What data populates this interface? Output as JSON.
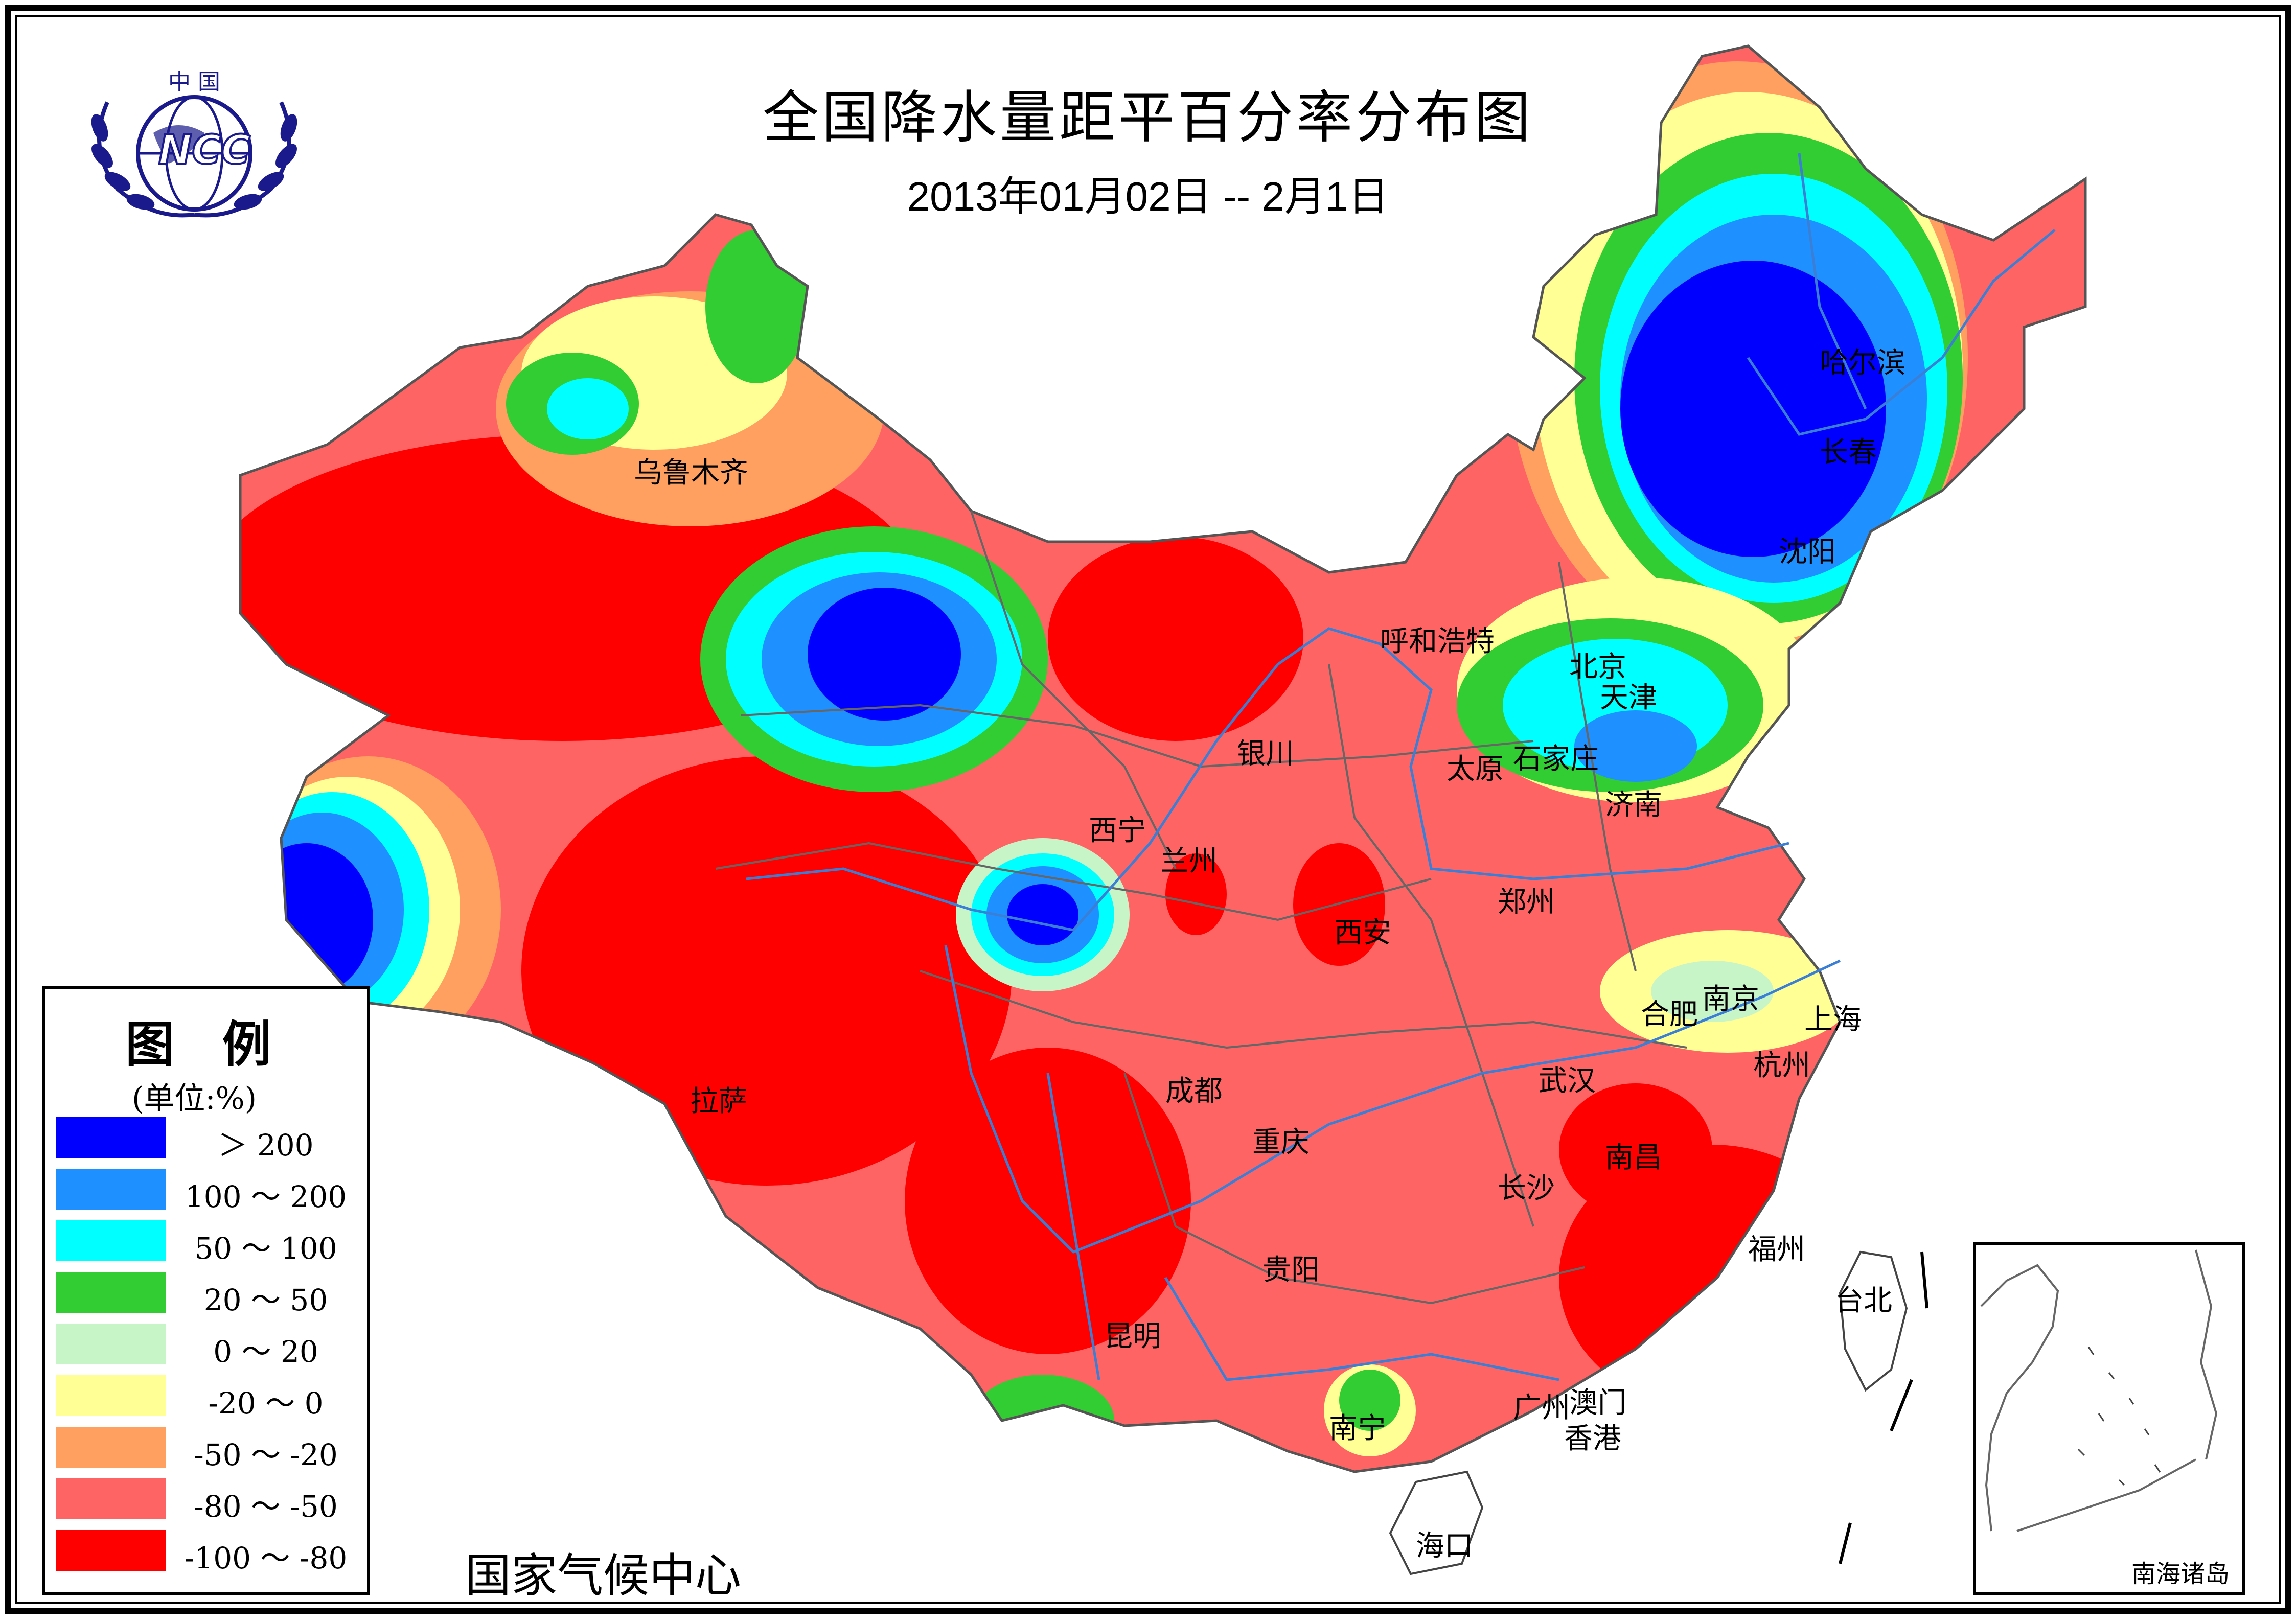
{
  "header": {
    "title": "全国降水量距平百分率分布图",
    "subtitle": "2013年01月02日 -- 2月1日"
  },
  "logo": {
    "top_text": "中 国",
    "emblem_text": "NCC"
  },
  "footer": {
    "organization": "国家气候中心"
  },
  "legend": {
    "title": "图 例",
    "unit": "(单位:%)",
    "items": [
      {
        "label": "＞ 200",
        "color": "#0000ff"
      },
      {
        "label": "100 ～ 200",
        "color": "#1e90ff"
      },
      {
        "label": "50 ～ 100",
        "color": "#00ffff"
      },
      {
        "label": "20 ～ 50",
        "color": "#32cd32"
      },
      {
        "label": "0 ～ 20",
        "color": "#c8f5c8"
      },
      {
        "label": "-20 ～ 0",
        "color": "#ffff96"
      },
      {
        "label": "-50 ～ -20",
        "color": "#ffa060"
      },
      {
        "label": "-80 ～ -50",
        "color": "#ff6464"
      },
      {
        "label": "-100 ～ -80",
        "color": "#ff0000"
      }
    ]
  },
  "cities": {
    "urumqi": "乌鲁木齐",
    "harbin": "哈尔滨",
    "changchun": "长春",
    "shenyang": "沈阳",
    "hohhot": "呼和浩特",
    "beijing": "北京",
    "tianjin": "天津",
    "yinchuan": "银川",
    "taiyuan": "太原",
    "shijiazhuang": "石家庄",
    "jinan": "济南",
    "xining": "西宁",
    "lanzhou": "兰州",
    "zhengzhou": "郑州",
    "xian": "西安",
    "hefei": "合肥",
    "nanjing": "南京",
    "shanghai": "上海",
    "lhasa": "拉萨",
    "chengdu": "成都",
    "wuhan": "武汉",
    "hangzhou": "杭州",
    "chongqing": "重庆",
    "nanchang": "南昌",
    "changsha": "长沙",
    "fuzhou": "福州",
    "guiyang": "贵阳",
    "taipei": "台北",
    "kunming": "昆明",
    "guangzhou": "广州",
    "macau": "澳门",
    "nanning": "南宁",
    "hongkong": "香港",
    "haikou": "海口"
  },
  "inset": {
    "label": "南海诸岛"
  }
}
